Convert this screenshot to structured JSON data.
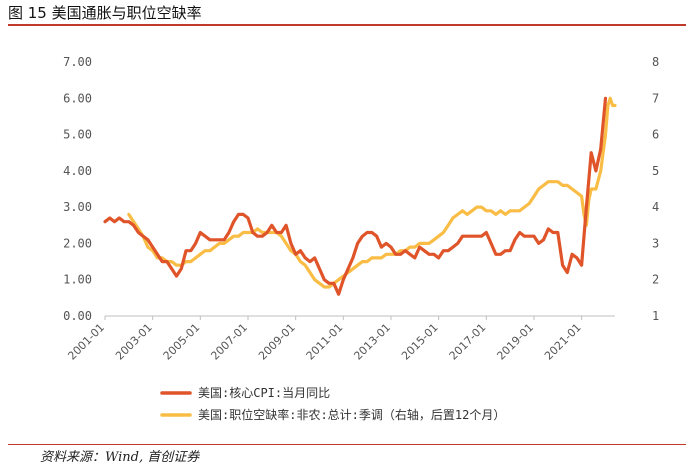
{
  "header": {
    "title": "图 15  美国通胀与职位空缺率"
  },
  "footer": {
    "source": "资料来源：Wind, 首创证券"
  },
  "chart_data": {
    "type": "line",
    "title": "图 15  美国通胀与职位空缺率",
    "xlabel": "",
    "ylabel": "",
    "y_left": {
      "min": 0,
      "max": 7,
      "step": 1,
      "ticks": [
        "0.00",
        "1.00",
        "2.00",
        "3.00",
        "4.00",
        "5.00",
        "6.00",
        "7.00"
      ]
    },
    "y_right": {
      "min": 1,
      "max": 8,
      "step": 1,
      "ticks": [
        "1",
        "2",
        "3",
        "4",
        "5",
        "6",
        "7",
        "8"
      ]
    },
    "x_ticks": [
      "2001-01",
      "2003-01",
      "2005-01",
      "2007-01",
      "2009-01",
      "2011-01",
      "2013-01",
      "2015-01",
      "2017-01",
      "2019-01",
      "2021-01"
    ],
    "x_range": [
      2001.0,
      2022.4
    ],
    "grid": false,
    "legend_position": "bottom",
    "colors": {
      "cpi": "#e0542a",
      "jobs": "#f9bd45"
    },
    "series": [
      {
        "name": "美国:核心CPI:当月同比",
        "axis": "left",
        "color": "#e0542a",
        "points": [
          [
            2001.0,
            2.6
          ],
          [
            2001.2,
            2.7
          ],
          [
            2001.4,
            2.6
          ],
          [
            2001.6,
            2.7
          ],
          [
            2001.8,
            2.6
          ],
          [
            2002.0,
            2.6
          ],
          [
            2002.2,
            2.5
          ],
          [
            2002.4,
            2.3
          ],
          [
            2002.6,
            2.2
          ],
          [
            2002.8,
            2.1
          ],
          [
            2003.0,
            1.9
          ],
          [
            2003.2,
            1.7
          ],
          [
            2003.4,
            1.5
          ],
          [
            2003.6,
            1.5
          ],
          [
            2003.8,
            1.3
          ],
          [
            2004.0,
            1.1
          ],
          [
            2004.2,
            1.3
          ],
          [
            2004.4,
            1.8
          ],
          [
            2004.6,
            1.8
          ],
          [
            2004.8,
            2.0
          ],
          [
            2005.0,
            2.3
          ],
          [
            2005.2,
            2.2
          ],
          [
            2005.4,
            2.1
          ],
          [
            2005.6,
            2.1
          ],
          [
            2005.8,
            2.1
          ],
          [
            2006.0,
            2.1
          ],
          [
            2006.2,
            2.3
          ],
          [
            2006.4,
            2.6
          ],
          [
            2006.6,
            2.8
          ],
          [
            2006.8,
            2.8
          ],
          [
            2007.0,
            2.7
          ],
          [
            2007.2,
            2.3
          ],
          [
            2007.4,
            2.2
          ],
          [
            2007.6,
            2.2
          ],
          [
            2007.8,
            2.3
          ],
          [
            2008.0,
            2.5
          ],
          [
            2008.2,
            2.3
          ],
          [
            2008.4,
            2.3
          ],
          [
            2008.6,
            2.5
          ],
          [
            2008.8,
            2.0
          ],
          [
            2009.0,
            1.7
          ],
          [
            2009.2,
            1.8
          ],
          [
            2009.4,
            1.6
          ],
          [
            2009.6,
            1.5
          ],
          [
            2009.8,
            1.6
          ],
          [
            2010.0,
            1.3
          ],
          [
            2010.2,
            1.0
          ],
          [
            2010.4,
            0.9
          ],
          [
            2010.6,
            0.9
          ],
          [
            2010.8,
            0.6
          ],
          [
            2011.0,
            1.0
          ],
          [
            2011.2,
            1.3
          ],
          [
            2011.4,
            1.6
          ],
          [
            2011.6,
            2.0
          ],
          [
            2011.8,
            2.2
          ],
          [
            2012.0,
            2.3
          ],
          [
            2012.2,
            2.3
          ],
          [
            2012.4,
            2.2
          ],
          [
            2012.6,
            1.9
          ],
          [
            2012.8,
            2.0
          ],
          [
            2013.0,
            1.9
          ],
          [
            2013.2,
            1.7
          ],
          [
            2013.4,
            1.7
          ],
          [
            2013.6,
            1.8
          ],
          [
            2013.8,
            1.7
          ],
          [
            2014.0,
            1.6
          ],
          [
            2014.2,
            1.9
          ],
          [
            2014.4,
            1.8
          ],
          [
            2014.6,
            1.7
          ],
          [
            2014.8,
            1.7
          ],
          [
            2015.0,
            1.6
          ],
          [
            2015.2,
            1.8
          ],
          [
            2015.4,
            1.8
          ],
          [
            2015.6,
            1.9
          ],
          [
            2015.8,
            2.0
          ],
          [
            2016.0,
            2.2
          ],
          [
            2016.2,
            2.2
          ],
          [
            2016.4,
            2.2
          ],
          [
            2016.6,
            2.2
          ],
          [
            2016.8,
            2.2
          ],
          [
            2017.0,
            2.3
          ],
          [
            2017.2,
            2.0
          ],
          [
            2017.4,
            1.7
          ],
          [
            2017.6,
            1.7
          ],
          [
            2017.8,
            1.8
          ],
          [
            2018.0,
            1.8
          ],
          [
            2018.2,
            2.1
          ],
          [
            2018.4,
            2.3
          ],
          [
            2018.6,
            2.2
          ],
          [
            2018.8,
            2.2
          ],
          [
            2019.0,
            2.2
          ],
          [
            2019.2,
            2.0
          ],
          [
            2019.4,
            2.1
          ],
          [
            2019.6,
            2.4
          ],
          [
            2019.8,
            2.3
          ],
          [
            2020.0,
            2.3
          ],
          [
            2020.2,
            1.4
          ],
          [
            2020.4,
            1.2
          ],
          [
            2020.6,
            1.7
          ],
          [
            2020.8,
            1.6
          ],
          [
            2021.0,
            1.4
          ],
          [
            2021.2,
            3.0
          ],
          [
            2021.4,
            4.5
          ],
          [
            2021.6,
            4.0
          ],
          [
            2021.8,
            4.6
          ],
          [
            2022.0,
            6.0
          ]
        ]
      },
      {
        "name": "美国:职位空缺率:非农:总计:季调（右轴，后置12个月）",
        "axis": "right",
        "color": "#f9bd45",
        "points": [
          [
            2002.0,
            3.8
          ],
          [
            2002.2,
            3.6
          ],
          [
            2002.4,
            3.4
          ],
          [
            2002.6,
            3.2
          ],
          [
            2002.8,
            2.9
          ],
          [
            2003.0,
            2.8
          ],
          [
            2003.2,
            2.6
          ],
          [
            2003.4,
            2.6
          ],
          [
            2003.6,
            2.5
          ],
          [
            2003.8,
            2.5
          ],
          [
            2004.0,
            2.4
          ],
          [
            2004.2,
            2.4
          ],
          [
            2004.4,
            2.5
          ],
          [
            2004.6,
            2.5
          ],
          [
            2004.8,
            2.6
          ],
          [
            2005.0,
            2.7
          ],
          [
            2005.2,
            2.8
          ],
          [
            2005.4,
            2.8
          ],
          [
            2005.6,
            2.9
          ],
          [
            2005.8,
            3.0
          ],
          [
            2006.0,
            3.0
          ],
          [
            2006.2,
            3.1
          ],
          [
            2006.4,
            3.2
          ],
          [
            2006.6,
            3.2
          ],
          [
            2006.8,
            3.3
          ],
          [
            2007.0,
            3.3
          ],
          [
            2007.2,
            3.3
          ],
          [
            2007.4,
            3.4
          ],
          [
            2007.6,
            3.3
          ],
          [
            2007.8,
            3.3
          ],
          [
            2008.0,
            3.3
          ],
          [
            2008.2,
            3.3
          ],
          [
            2008.4,
            3.2
          ],
          [
            2008.6,
            3.0
          ],
          [
            2008.8,
            2.8
          ],
          [
            2009.0,
            2.7
          ],
          [
            2009.2,
            2.5
          ],
          [
            2009.4,
            2.4
          ],
          [
            2009.6,
            2.2
          ],
          [
            2009.8,
            2.0
          ],
          [
            2010.0,
            1.9
          ],
          [
            2010.2,
            1.8
          ],
          [
            2010.4,
            1.8
          ],
          [
            2010.6,
            1.9
          ],
          [
            2010.8,
            2.0
          ],
          [
            2011.0,
            2.1
          ],
          [
            2011.2,
            2.2
          ],
          [
            2011.4,
            2.3
          ],
          [
            2011.6,
            2.4
          ],
          [
            2011.8,
            2.5
          ],
          [
            2012.0,
            2.5
          ],
          [
            2012.2,
            2.6
          ],
          [
            2012.4,
            2.6
          ],
          [
            2012.6,
            2.6
          ],
          [
            2012.8,
            2.7
          ],
          [
            2013.0,
            2.7
          ],
          [
            2013.2,
            2.7
          ],
          [
            2013.4,
            2.8
          ],
          [
            2013.6,
            2.8
          ],
          [
            2013.8,
            2.9
          ],
          [
            2014.0,
            2.9
          ],
          [
            2014.2,
            3.0
          ],
          [
            2014.4,
            3.0
          ],
          [
            2014.6,
            3.0
          ],
          [
            2014.8,
            3.1
          ],
          [
            2015.0,
            3.2
          ],
          [
            2015.2,
            3.3
          ],
          [
            2015.4,
            3.5
          ],
          [
            2015.6,
            3.7
          ],
          [
            2015.8,
            3.8
          ],
          [
            2016.0,
            3.9
          ],
          [
            2016.2,
            3.8
          ],
          [
            2016.4,
            3.9
          ],
          [
            2016.6,
            4.0
          ],
          [
            2016.8,
            4.0
          ],
          [
            2017.0,
            3.9
          ],
          [
            2017.2,
            3.9
          ],
          [
            2017.4,
            3.8
          ],
          [
            2017.6,
            3.9
          ],
          [
            2017.8,
            3.8
          ],
          [
            2018.0,
            3.9
          ],
          [
            2018.2,
            3.9
          ],
          [
            2018.4,
            3.9
          ],
          [
            2018.6,
            4.0
          ],
          [
            2018.8,
            4.1
          ],
          [
            2019.0,
            4.3
          ],
          [
            2019.2,
            4.5
          ],
          [
            2019.4,
            4.6
          ],
          [
            2019.6,
            4.7
          ],
          [
            2019.8,
            4.7
          ],
          [
            2020.0,
            4.7
          ],
          [
            2020.2,
            4.6
          ],
          [
            2020.4,
            4.6
          ],
          [
            2020.6,
            4.5
          ],
          [
            2020.8,
            4.4
          ],
          [
            2021.0,
            4.3
          ],
          [
            2021.1,
            3.8
          ],
          [
            2021.2,
            3.5
          ],
          [
            2021.3,
            4.2
          ],
          [
            2021.4,
            4.5
          ],
          [
            2021.6,
            4.5
          ],
          [
            2021.8,
            5.0
          ],
          [
            2022.0,
            6.0
          ],
          [
            2022.1,
            6.8
          ],
          [
            2022.2,
            7.0
          ],
          [
            2022.3,
            6.8
          ],
          [
            2022.4,
            6.8
          ]
        ]
      }
    ]
  }
}
